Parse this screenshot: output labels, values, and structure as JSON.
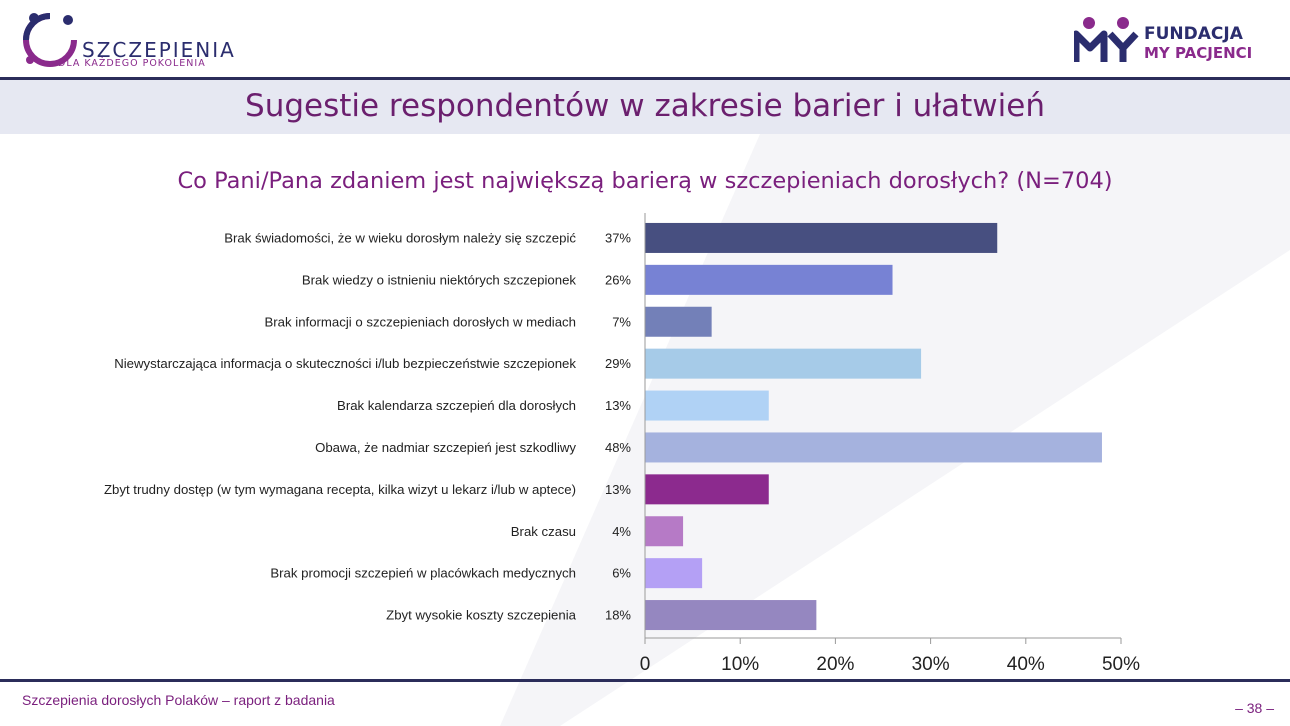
{
  "brand_left": {
    "name": "SZCZEPIENIA",
    "tagline": "DLA KAŻDEGO POKOLENIA"
  },
  "brand_right": {
    "line1": "FUNDACJA",
    "line2": "MY PACJENCI"
  },
  "title": "Sugestie respondentów w zakresie barier i ułatwień",
  "question": "Co Pani/Pana zdaniem jest największą barierą w szczepieniach dorosłych? (N=704)",
  "footer": "Szczepienia dorosłych Polaków – raport z badania",
  "page_number": "– 38 –",
  "chart_data": {
    "type": "bar",
    "orientation": "horizontal",
    "categories": [
      "Brak świadomości, że w wieku dorosłym należy się szczepić",
      "Brak wiedzy o istnieniu niektórych szczepionek",
      "Brak informacji o szczepieniach dorosłych w mediach",
      "Niewystarczająca informacja o skuteczności i/lub bezpieczeństwie szczepionek",
      "Brak kalendarza szczepień dla dorosłych",
      "Obawa, że nadmiar szczepień jest szkodliwy",
      "Zbyt trudny dostęp (w tym wymagana recepta, kilka wizyt u lekarz i/lub w aptece)",
      "Brak czasu",
      "Brak promocji szczepień w placówkach medycznych",
      "Zbyt wysokie koszty szczepienia"
    ],
    "values": [
      37,
      26,
      7,
      29,
      13,
      48,
      13,
      4,
      6,
      18
    ],
    "value_labels": [
      "37%",
      "26%",
      "7%",
      "29%",
      "13%",
      "48%",
      "13%",
      "4%",
      "6%",
      "18%"
    ],
    "colors": [
      "#474f80",
      "#7782d4",
      "#7380b8",
      "#a6cbe8",
      "#b0d2f5",
      "#a5b2de",
      "#8c2a8e",
      "#b67ac6",
      "#b4a0f5",
      "#9587c0"
    ],
    "xlim": [
      0,
      50
    ],
    "xticks": [
      0,
      10,
      20,
      30,
      40,
      50
    ],
    "xtick_labels": [
      "0",
      "10%",
      "20%",
      "30%",
      "40%",
      "50%"
    ],
    "title": "Co Pani/Pana zdaniem jest największą barierą w szczepieniach dorosłych? (N=704)",
    "xlabel": "",
    "ylabel": ""
  }
}
